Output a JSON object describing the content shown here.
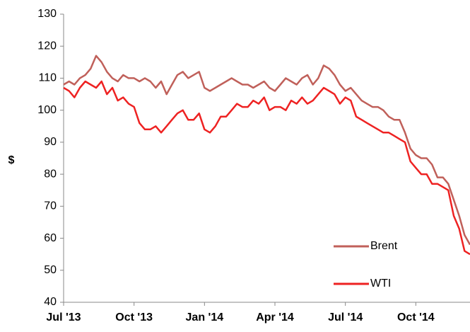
{
  "chart_data": {
    "type": "line",
    "categories": [
      "Jul '13",
      null,
      null,
      null,
      null,
      null,
      null,
      null,
      null,
      null,
      null,
      null,
      null,
      "Oct '13",
      null,
      null,
      null,
      null,
      null,
      null,
      null,
      null,
      null,
      null,
      null,
      null,
      "Jan '14",
      null,
      null,
      null,
      null,
      null,
      null,
      null,
      null,
      null,
      null,
      null,
      null,
      "Apr '14",
      null,
      null,
      null,
      null,
      null,
      null,
      null,
      null,
      null,
      null,
      null,
      null,
      "Jul '14",
      null,
      null,
      null,
      null,
      null,
      null,
      null,
      null,
      null,
      null,
      null,
      null,
      "Oct '14",
      null,
      null,
      null,
      null,
      null,
      null,
      null,
      null,
      null,
      null
    ],
    "series": [
      {
        "name": "Brent",
        "color": "#c0605a",
        "values": [
          108,
          109,
          108,
          110,
          111,
          113,
          117,
          115,
          112,
          110,
          109,
          111,
          110,
          110,
          109,
          110,
          109,
          107,
          109,
          105,
          108,
          111,
          112,
          110,
          111,
          112,
          107,
          106,
          107,
          108,
          109,
          110,
          109,
          108,
          108,
          107,
          108,
          109,
          107,
          106,
          108,
          110,
          109,
          108,
          110,
          111,
          108,
          110,
          114,
          113,
          111,
          108,
          106,
          107,
          105,
          103,
          102,
          101,
          101,
          100,
          98,
          97,
          97,
          93,
          88,
          86,
          85,
          85,
          83,
          79,
          79,
          77,
          72,
          67,
          61,
          58
        ]
      },
      {
        "name": "WTI",
        "color": "#ee2222",
        "values": [
          107,
          106,
          104,
          107,
          109,
          108,
          107,
          109,
          105,
          107,
          103,
          104,
          102,
          101,
          96,
          94,
          94,
          95,
          93,
          95,
          97,
          99,
          100,
          97,
          97,
          99,
          94,
          93,
          95,
          98,
          98,
          100,
          102,
          101,
          101,
          103,
          102,
          104,
          100,
          101,
          101,
          100,
          103,
          102,
          104,
          102,
          103,
          105,
          107,
          106,
          105,
          102,
          104,
          103,
          98,
          97,
          96,
          95,
          94,
          93,
          93,
          92,
          91,
          90,
          84,
          82,
          80,
          80,
          77,
          77,
          76,
          75,
          67,
          63,
          56,
          55
        ]
      }
    ],
    "ylabel": "$",
    "ylim": [
      40,
      130
    ],
    "yticks": [
      40,
      50,
      60,
      70,
      80,
      90,
      100,
      110,
      120,
      130
    ],
    "grid": false,
    "legend": "lower right"
  }
}
